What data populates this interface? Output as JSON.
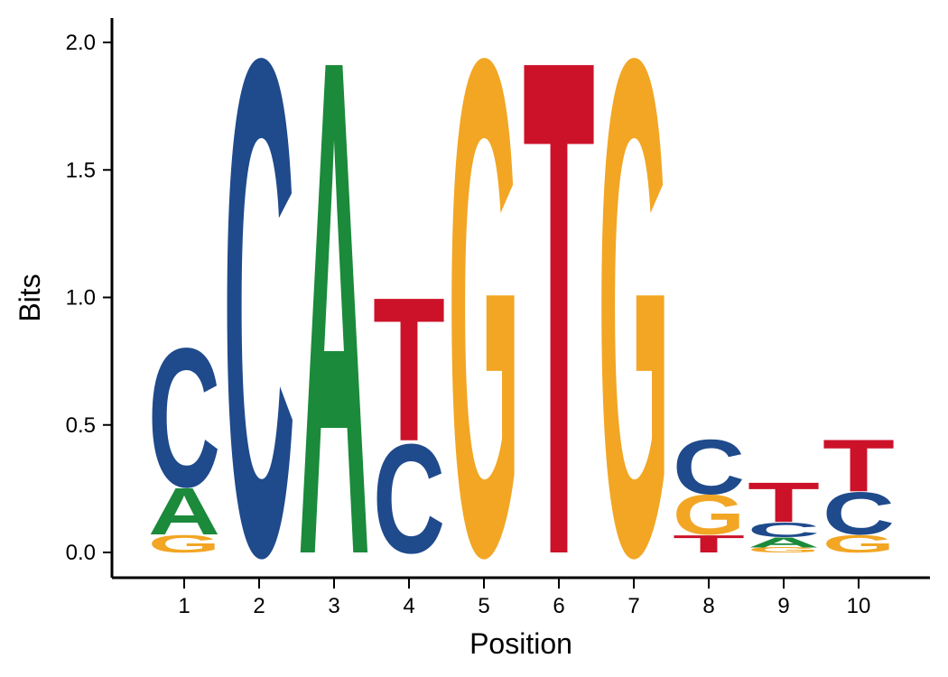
{
  "chart_data": {
    "type": "sequence-logo",
    "title": "",
    "xlabel": "Position",
    "ylabel": "Bits",
    "ylim": [
      0,
      2.0
    ],
    "y_ticks": [
      "0.0",
      "0.5",
      "1.0",
      "1.5",
      "2.0"
    ],
    "x_ticks": [
      "1",
      "2",
      "3",
      "4",
      "5",
      "6",
      "7",
      "8",
      "9",
      "10"
    ],
    "colors": {
      "A": "#1b8a3a",
      "C": "#1f4a8c",
      "G": "#f2a624",
      "T": "#cc1229"
    },
    "positions": [
      {
        "position": 1,
        "letters": [
          {
            "base": "G",
            "bits": 0.07
          },
          {
            "base": "A",
            "bits": 0.19
          },
          {
            "base": "C",
            "bits": 0.56
          }
        ]
      },
      {
        "position": 2,
        "letters": [
          {
            "base": "C",
            "bits": 2.0
          }
        ]
      },
      {
        "position": 3,
        "letters": [
          {
            "base": "A",
            "bits": 2.0
          }
        ]
      },
      {
        "position": 4,
        "letters": [
          {
            "base": "C",
            "bits": 0.44
          },
          {
            "base": "T",
            "bits": 0.58
          }
        ]
      },
      {
        "position": 5,
        "letters": [
          {
            "base": "G",
            "bits": 2.0
          }
        ]
      },
      {
        "position": 6,
        "letters": [
          {
            "base": "T",
            "bits": 2.0
          }
        ]
      },
      {
        "position": 7,
        "letters": [
          {
            "base": "G",
            "bits": 2.0
          }
        ]
      },
      {
        "position": 8,
        "letters": [
          {
            "base": "T",
            "bits": 0.07
          },
          {
            "base": "G",
            "bits": 0.16
          },
          {
            "base": "C",
            "bits": 0.22
          }
        ]
      },
      {
        "position": 9,
        "letters": [
          {
            "base": "G",
            "bits": 0.02
          },
          {
            "base": "A",
            "bits": 0.04
          },
          {
            "base": "C",
            "bits": 0.06
          },
          {
            "base": "T",
            "bits": 0.16
          }
        ]
      },
      {
        "position": 10,
        "letters": [
          {
            "base": "G",
            "bits": 0.07
          },
          {
            "base": "C",
            "bits": 0.17
          },
          {
            "base": "T",
            "bits": 0.21
          }
        ]
      }
    ]
  }
}
